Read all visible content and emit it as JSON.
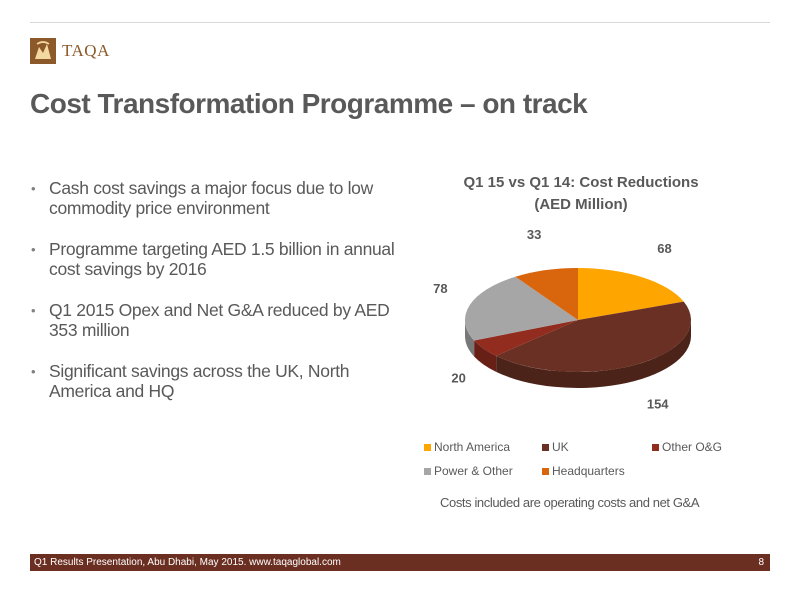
{
  "brand": {
    "name": "TAQA"
  },
  "slide": {
    "title": "Cost Transformation Programme – on track",
    "bullets": [
      "Cash cost savings a major focus due to low commodity price environment",
      "Programme targeting AED 1.5 billion in annual cost savings by 2016",
      "Q1 2015 Opex and Net G&A  reduced by AED 353 million",
      "Significant savings across the UK, North America and HQ"
    ],
    "note": "Costs included are operating costs and net G&A"
  },
  "footer": {
    "text": "Q1 Results Presentation, Abu Dhabi, May 2015. www.taqaglobal.com",
    "page": "8"
  },
  "colors": {
    "title_text": "#595959",
    "footer_bar": "#6b2f22",
    "brand": "#8c5a2a"
  },
  "chart_data": {
    "type": "pie",
    "style": "3d-tilted",
    "title": "Q1 15 vs Q1 14: Cost Reductions (AED Million)",
    "title_lines": [
      "Q1 15 vs Q1 14: Cost Reductions",
      "(AED Million)"
    ],
    "legend_position": "bottom",
    "slices": [
      {
        "label": "North America",
        "value": 68,
        "color": "#ffa500"
      },
      {
        "label": "UK",
        "value": 154,
        "color": "#6a3023"
      },
      {
        "label": "Other O&G",
        "value": 20,
        "color": "#912c1e"
      },
      {
        "label": "Power & Other",
        "value": 78,
        "color": "#a6a6a6"
      },
      {
        "label": "Headquarters",
        "value": 33,
        "color": "#d9650c"
      }
    ]
  }
}
